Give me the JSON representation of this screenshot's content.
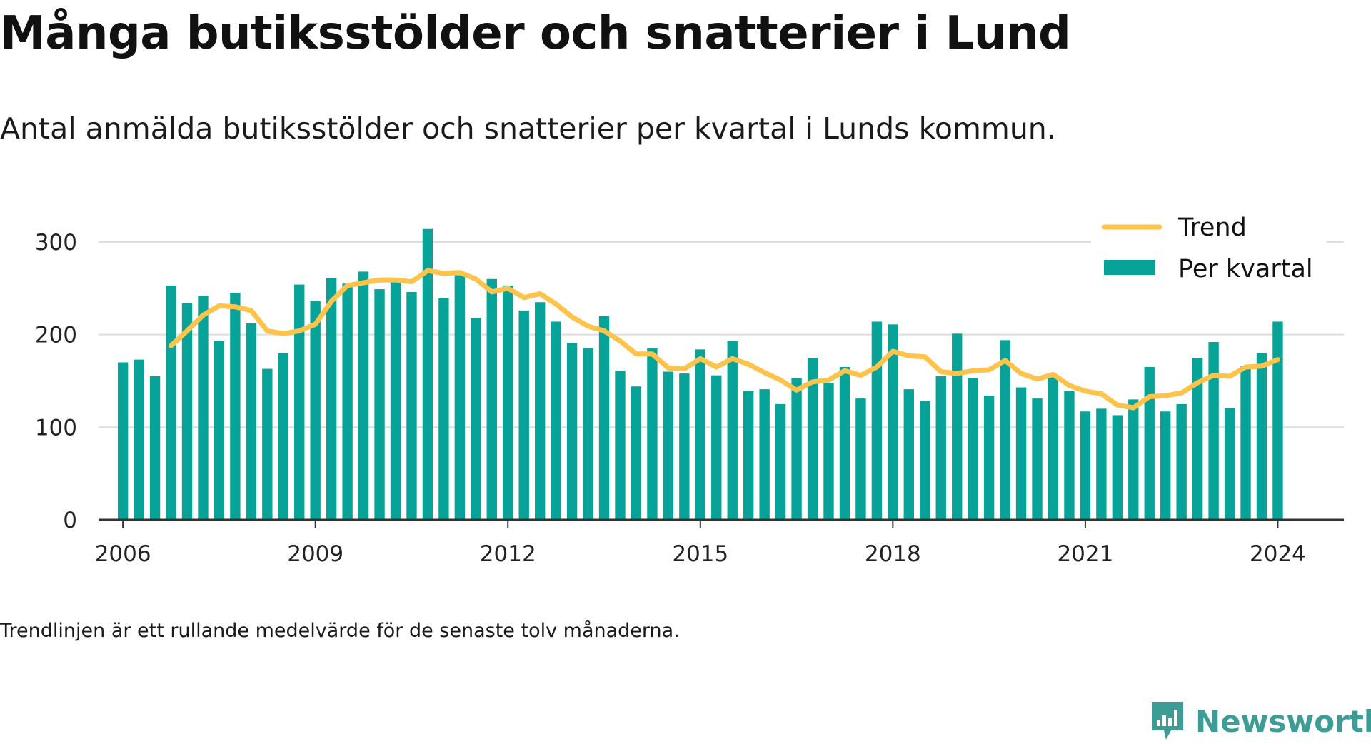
{
  "title": "Många butiksstölder och snatterier i Lund",
  "subtitle": "Antal anmälda butiksstölder och snatterier per kvartal i Lunds kommun.",
  "footnote": "Trendlinjen är ett rullande medelvärde för de senaste tolv månaderna.",
  "brand": {
    "name": "Newsworthy",
    "icon": "newsworthy-logo-icon",
    "color": "#3d9c96"
  },
  "chart_data": {
    "type": "bar",
    "title": "Många butiksstölder och snatterier i Lund",
    "subtitle": "Antal anmälda butiksstölder och snatterier per kvartal i Lunds kommun.",
    "xlabel": "",
    "ylabel": "",
    "ylim": [
      0,
      330
    ],
    "yticks": [
      0,
      100,
      200,
      300
    ],
    "xlim": [
      2005.62,
      2025.03
    ],
    "xticks": [
      2006,
      2009,
      2012,
      2015,
      2018,
      2021,
      2024
    ],
    "grid": true,
    "legend_position": "top-right",
    "colors": {
      "bars": "#07a398",
      "trend": "#fdc34b",
      "grid": "#dddddd",
      "axis": "#333333"
    },
    "start_year": 2006,
    "series": [
      {
        "name": "Per kvartal",
        "type": "bar",
        "values": [
          170,
          173,
          155,
          253,
          234,
          242,
          193,
          245,
          212,
          163,
          180,
          254,
          236,
          261,
          255,
          268,
          249,
          258,
          246,
          314,
          239,
          264,
          218,
          260,
          253,
          226,
          235,
          214,
          191,
          185,
          220,
          161,
          144,
          185,
          160,
          158,
          184,
          156,
          193,
          139,
          141,
          125,
          153,
          175,
          148,
          165,
          131,
          214,
          211,
          141,
          128,
          155,
          201,
          153,
          134,
          194,
          143,
          131,
          155,
          139,
          117,
          120,
          113,
          130,
          165,
          117,
          125,
          175,
          192,
          121,
          166,
          180,
          214
        ]
      },
      {
        "name": "Trend",
        "type": "line",
        "values": [
          null,
          null,
          null,
          188,
          204,
          221,
          231,
          230,
          226,
          204,
          201,
          204,
          211,
          236,
          253,
          256,
          259,
          259,
          257,
          269,
          266,
          267,
          260,
          246,
          250,
          240,
          244,
          233,
          219,
          209,
          204,
          193,
          179,
          179,
          164,
          163,
          174,
          165,
          174,
          168,
          159,
          151,
          140,
          149,
          151,
          161,
          156,
          165,
          182,
          177,
          176,
          160,
          158,
          161,
          162,
          172,
          158,
          152,
          157,
          145,
          139,
          136,
          124,
          121,
          133,
          134,
          137,
          148,
          156,
          155,
          165,
          166,
          173
        ]
      }
    ]
  }
}
